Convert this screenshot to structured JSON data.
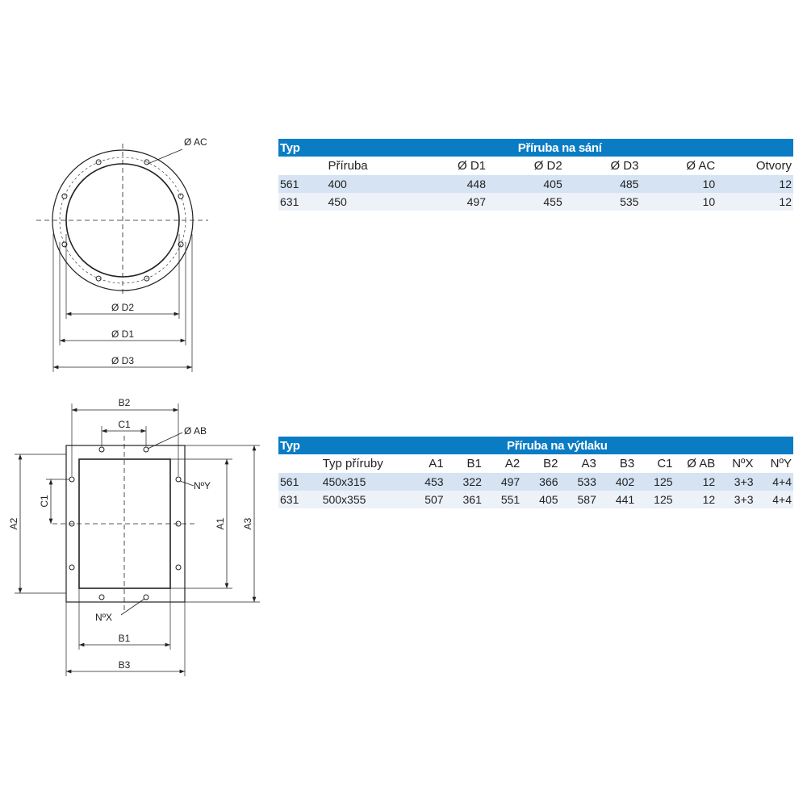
{
  "intake_drawing": {
    "ac_label": "Ø AC",
    "d1_label": "Ø D1",
    "d2_label": "Ø D2",
    "d3_label": "Ø D3"
  },
  "outlet_drawing": {
    "b1_label": "B1",
    "b2_label": "B2",
    "b3_label": "B3",
    "c1_top_label": "C1",
    "c1_side_label": "C1",
    "a1_label": "A1",
    "a2_label": "A2",
    "a3_label": "A3",
    "ab_label": "Ø AB",
    "nx_label": "NºX",
    "ny_label": "NºY"
  },
  "intake_table": {
    "type_header": "Typ",
    "title": "Příruba na sání",
    "columns": [
      "Příruba",
      "Ø D1",
      "Ø D2",
      "Ø D3",
      "Ø AC",
      "Otvory"
    ],
    "rows": [
      [
        "561",
        "400",
        "448",
        "405",
        "485",
        "10",
        "12"
      ],
      [
        "631",
        "450",
        "497",
        "455",
        "535",
        "10",
        "12"
      ]
    ]
  },
  "outlet_table": {
    "type_header": "Typ",
    "title": "Příruba na výtlaku",
    "columns": [
      "Typ příruby",
      "A1",
      "B1",
      "A2",
      "B2",
      "A3",
      "B3",
      "C1",
      "Ø AB",
      "NºX",
      "NºY"
    ],
    "rows": [
      [
        "561",
        "450x315",
        "453",
        "322",
        "497",
        "366",
        "533",
        "402",
        "125",
        "12",
        "3+3",
        "4+4"
      ],
      [
        "631",
        "500x355",
        "507",
        "361",
        "551",
        "405",
        "587",
        "441",
        "125",
        "12",
        "3+3",
        "4+4"
      ]
    ]
  },
  "colors": {
    "header_blue": "#0a7cc4",
    "row_odd": "#d5e3f3",
    "row_even": "#edf2f9"
  }
}
